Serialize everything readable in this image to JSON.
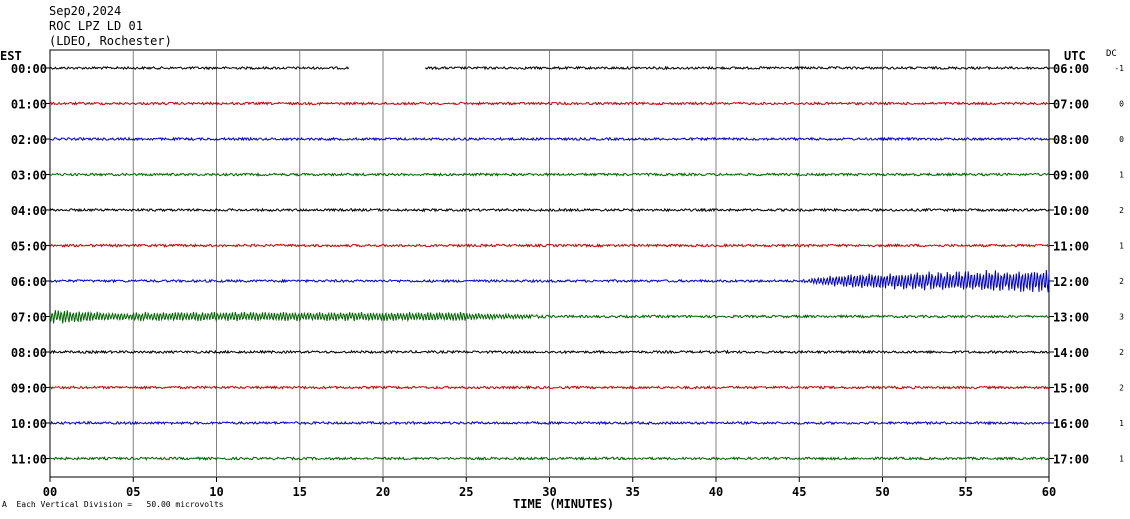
{
  "header": {
    "date": "Sep20,2024",
    "station": "ROC LPZ LD 01",
    "network": "(LDEO, Rochester)"
  },
  "left_zone": "EST",
  "right_zone": "UTC",
  "dc_label": "DC",
  "footer": {
    "scale_text": "Each Vertical Division =   50.00 microvolts",
    "corner_mark": "A"
  },
  "colors": {
    "black": "#000000",
    "red": "#cc0000",
    "blue": "#0000cc",
    "green": "#006400",
    "grid": "#808080"
  },
  "chart_data": {
    "type": "line",
    "xlabel": "TIME (MINUTES)",
    "xlim": [
      0,
      60
    ],
    "x_ticks": [
      "00",
      "05",
      "10",
      "15",
      "20",
      "25",
      "30",
      "35",
      "40",
      "45",
      "50",
      "55",
      "60"
    ],
    "x_tick_values": [
      0,
      5,
      10,
      15,
      20,
      25,
      30,
      35,
      40,
      45,
      50,
      55,
      60
    ],
    "rows": [
      {
        "est": "00:00",
        "utc": "06:00",
        "dc": "-1",
        "color": "#000000",
        "gaps": [
          [
            18,
            22.5
          ]
        ]
      },
      {
        "est": "01:00",
        "utc": "07:00",
        "dc": "0",
        "color": "#cc0000"
      },
      {
        "est": "02:00",
        "utc": "08:00",
        "dc": "0",
        "color": "#0000cc"
      },
      {
        "est": "03:00",
        "utc": "09:00",
        "dc": "1",
        "color": "#006400"
      },
      {
        "est": "04:00",
        "utc": "10:00",
        "dc": "2",
        "color": "#000000"
      },
      {
        "est": "05:00",
        "utc": "11:00",
        "dc": "1",
        "color": "#cc0000"
      },
      {
        "est": "06:00",
        "utc": "12:00",
        "dc": "2",
        "color": "#0000cc",
        "events": [
          [
            45,
            48,
            0.3,
            2.5
          ],
          [
            48,
            60,
            2.5,
            4
          ]
        ]
      },
      {
        "est": "07:00",
        "utc": "13:00",
        "dc": "3",
        "color": "#006400",
        "events": [
          [
            0,
            5,
            2.5,
            1
          ],
          [
            5,
            25,
            1.5,
            1.5
          ],
          [
            25,
            30,
            1.2,
            0.5
          ]
        ]
      },
      {
        "est": "08:00",
        "utc": "14:00",
        "dc": "2",
        "color": "#000000"
      },
      {
        "est": "09:00",
        "utc": "15:00",
        "dc": "2",
        "color": "#cc0000"
      },
      {
        "est": "10:00",
        "utc": "16:00",
        "dc": "1",
        "color": "#0000cc"
      },
      {
        "est": "11:00",
        "utc": "17:00",
        "dc": "1",
        "color": "#006400"
      }
    ]
  }
}
